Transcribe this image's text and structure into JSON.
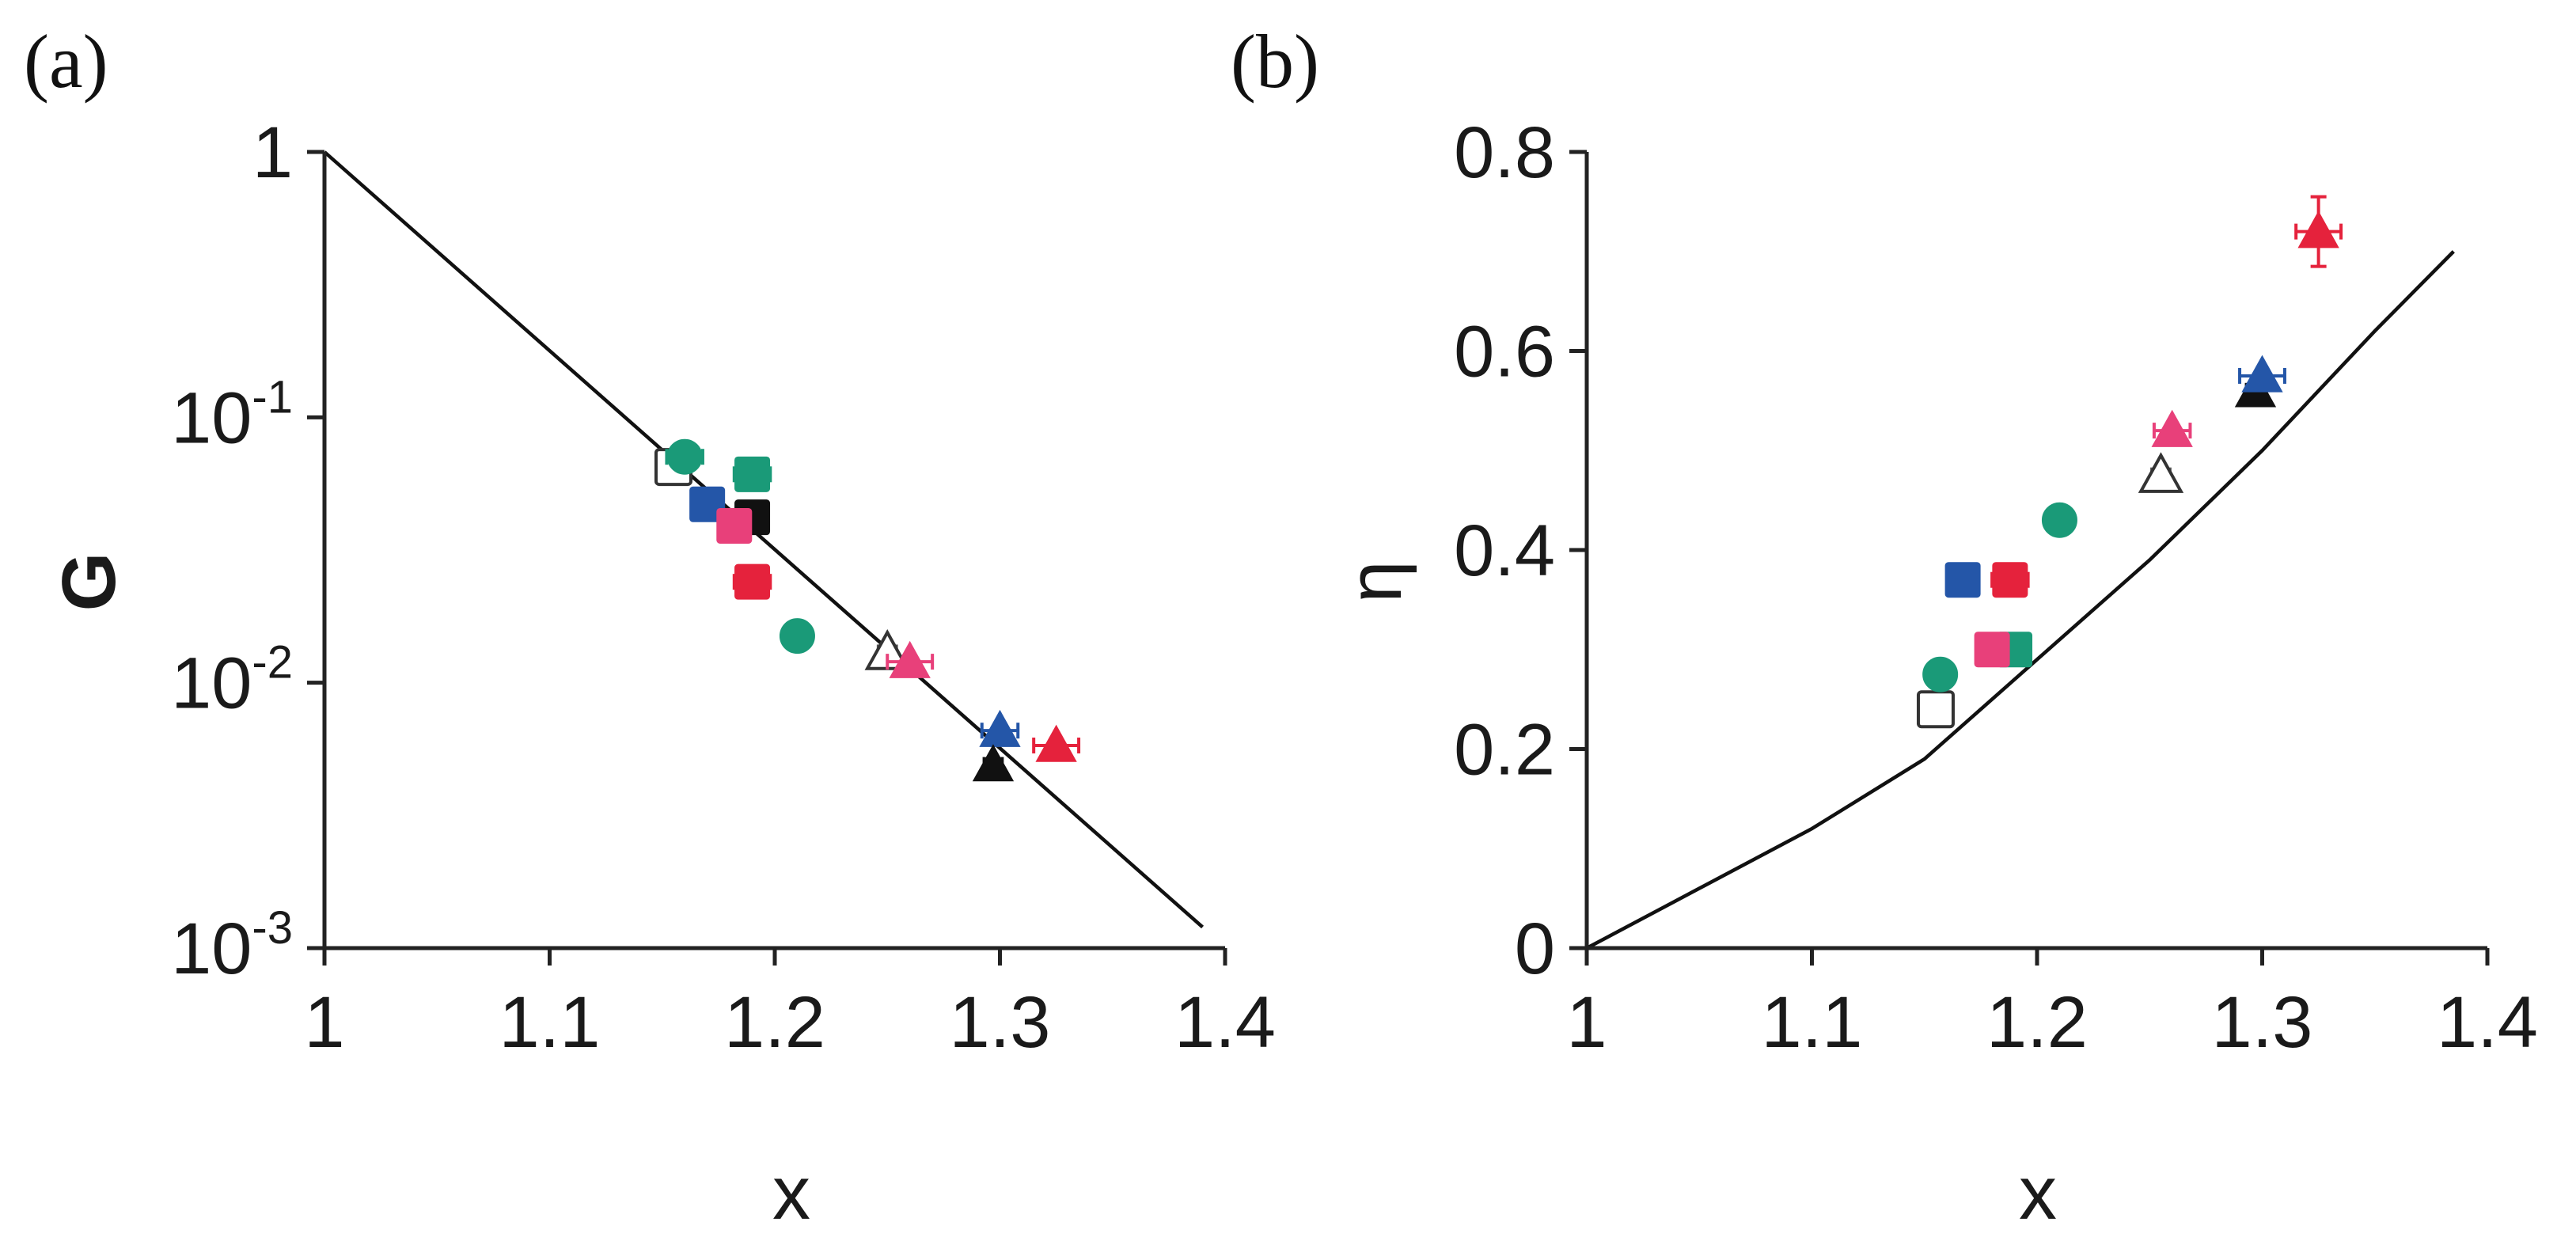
{
  "chart_data": [
    {
      "panel": "(a)",
      "type": "scatter",
      "xlabel": "x",
      "ylabel": "G",
      "yscale": "log",
      "xlim": [
        1,
        1.4
      ],
      "ylim": [
        0.001,
        1
      ],
      "xticks": [
        {
          "value": 1,
          "label": "1"
        },
        {
          "value": 1.1,
          "label": "1.1"
        },
        {
          "value": 1.2,
          "label": "1.2"
        },
        {
          "value": 1.3,
          "label": "1.3"
        },
        {
          "value": 1.4,
          "label": "1.4"
        }
      ],
      "yticks": [
        {
          "value": 1,
          "base": "1",
          "exp": ""
        },
        {
          "value": 0.1,
          "base": "10",
          "exp": "-1"
        },
        {
          "value": 0.01,
          "base": "10",
          "exp": "-2"
        },
        {
          "value": 0.001,
          "base": "10",
          "exp": "-3"
        }
      ],
      "fit_line": {
        "x": [
          1.0,
          1.39
        ],
        "y": [
          1.0,
          0.0012
        ]
      },
      "points": [
        {
          "x": 1.155,
          "y": 0.065,
          "marker": "square",
          "color": "#ffffff",
          "stroke": "#333333",
          "xerr": 0.005
        },
        {
          "x": 1.16,
          "y": 0.071,
          "marker": "circle",
          "color": "#1a9a78",
          "xerr": 0.008
        },
        {
          "x": 1.17,
          "y": 0.047,
          "marker": "square",
          "color": "#2456a8",
          "xerr": 0.006
        },
        {
          "x": 1.19,
          "y": 0.061,
          "marker": "square",
          "color": "#1a9a78",
          "xerr": 0.008
        },
        {
          "x": 1.19,
          "y": 0.042,
          "marker": "square",
          "color": "#111111",
          "xerr": 0.004
        },
        {
          "x": 1.182,
          "y": 0.039,
          "marker": "square",
          "color": "#e8407a",
          "xerr": 0.006
        },
        {
          "x": 1.19,
          "y": 0.024,
          "marker": "square",
          "color": "#e5223c",
          "xerr": 0.008
        },
        {
          "x": 1.21,
          "y": 0.015,
          "marker": "circle",
          "color": "#1a9a78",
          "xerr": 0.006
        },
        {
          "x": 1.25,
          "y": 0.013,
          "marker": "triangle",
          "color": "#ffffff",
          "stroke": "#333333",
          "xerr": 0.004
        },
        {
          "x": 1.26,
          "y": 0.012,
          "marker": "triangle",
          "color": "#e8407a",
          "xerr": 0.01
        },
        {
          "x": 1.3,
          "y": 0.0066,
          "marker": "triangle",
          "color": "#2456a8",
          "xerr": 0.008
        },
        {
          "x": 1.297,
          "y": 0.0049,
          "marker": "triangle",
          "color": "#111111",
          "xerr": 0.004
        },
        {
          "x": 1.325,
          "y": 0.0058,
          "marker": "triangle",
          "color": "#e5223c",
          "xerr": 0.01
        }
      ]
    },
    {
      "panel": "(b)",
      "type": "scatter",
      "xlabel": "x",
      "ylabel": "η",
      "yscale": "linear",
      "xlim": [
        1,
        1.4
      ],
      "ylim": [
        0,
        0.8
      ],
      "xticks": [
        {
          "value": 1,
          "label": "1"
        },
        {
          "value": 1.1,
          "label": "1.1"
        },
        {
          "value": 1.2,
          "label": "1.2"
        },
        {
          "value": 1.3,
          "label": "1.3"
        },
        {
          "value": 1.4,
          "label": "1.4"
        }
      ],
      "yticks": [
        {
          "value": 0,
          "label": "0"
        },
        {
          "value": 0.2,
          "label": "0.2"
        },
        {
          "value": 0.4,
          "label": "0.4"
        },
        {
          "value": 0.6,
          "label": "0.6"
        },
        {
          "value": 0.8,
          "label": "0.8"
        }
      ],
      "fit_line": {
        "x": [
          1.0,
          1.05,
          1.1,
          1.15,
          1.2,
          1.25,
          1.3,
          1.35,
          1.385
        ],
        "y": [
          0.0,
          0.06,
          0.12,
          0.19,
          0.29,
          0.39,
          0.5,
          0.62,
          0.7
        ]
      },
      "points": [
        {
          "x": 1.155,
          "y": 0.24,
          "marker": "square",
          "color": "#ffffff",
          "stroke": "#333333",
          "xerr": 0.005
        },
        {
          "x": 1.157,
          "y": 0.275,
          "marker": "circle",
          "color": "#1a9a78",
          "xerr": 0.006
        },
        {
          "x": 1.167,
          "y": 0.37,
          "marker": "square",
          "color": "#2456a8",
          "xerr": 0.005
        },
        {
          "x": 1.188,
          "y": 0.37,
          "marker": "square",
          "color": "#e5223c",
          "xerr": 0.008
        },
        {
          "x": 1.19,
          "y": 0.3,
          "marker": "square",
          "color": "#1a9a78",
          "xerr": 0.006
        },
        {
          "x": 1.18,
          "y": 0.3,
          "marker": "square",
          "color": "#e8407a",
          "xerr": 0.006
        },
        {
          "x": 1.21,
          "y": 0.43,
          "marker": "circle",
          "color": "#1a9a78",
          "xerr": 0.006
        },
        {
          "x": 1.255,
          "y": 0.475,
          "marker": "triangle",
          "color": "#ffffff",
          "stroke": "#333333",
          "xerr": 0.004
        },
        {
          "x": 1.26,
          "y": 0.52,
          "marker": "triangle",
          "color": "#e8407a",
          "xerr": 0.008
        },
        {
          "x": 1.297,
          "y": 0.56,
          "marker": "triangle",
          "color": "#111111",
          "xerr": 0.004
        },
        {
          "x": 1.3,
          "y": 0.575,
          "marker": "triangle",
          "color": "#2456a8",
          "xerr": 0.01
        },
        {
          "x": 1.325,
          "y": 0.72,
          "marker": "triangle",
          "color": "#e5223c",
          "xerr": 0.01,
          "yerr": 0.035
        }
      ]
    }
  ]
}
